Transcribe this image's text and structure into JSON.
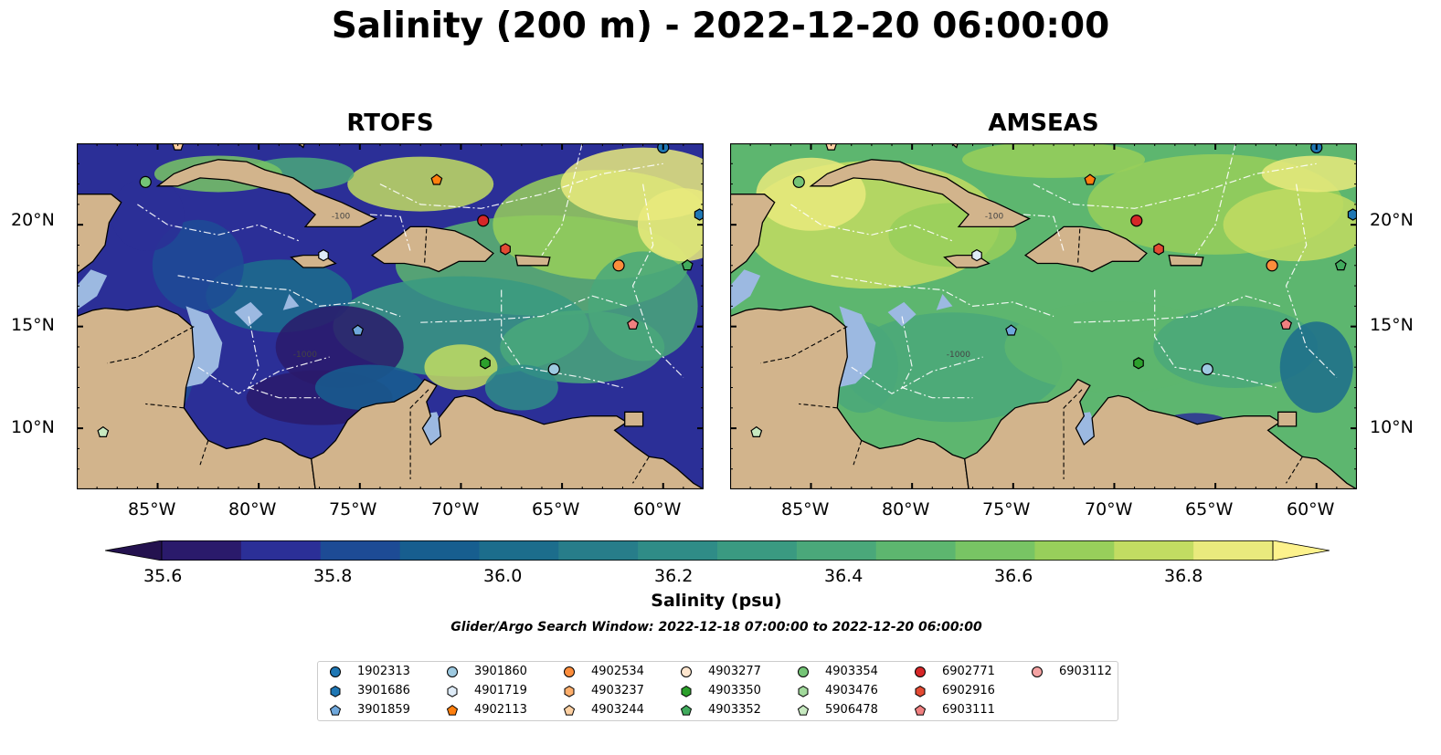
{
  "title": "Salinity (200 m) - 2022-12-20 06:00:00",
  "panels": [
    {
      "title": "RTOFS"
    },
    {
      "title": "AMSEAS"
    }
  ],
  "axes": {
    "lon_ticks": [
      "85°W",
      "80°W",
      "75°W",
      "70°W",
      "65°W",
      "60°W"
    ],
    "lat_ticks": [
      "20°N",
      "15°N",
      "10°N"
    ],
    "lon_range": [
      -89,
      -58
    ],
    "lat_range": [
      7,
      24
    ]
  },
  "colorbar": {
    "label": "Salinity (psu)",
    "ticks": [
      "35.6",
      "35.8",
      "36.0",
      "36.2",
      "36.4",
      "36.6",
      "36.8"
    ],
    "range": [
      35.5,
      37.0
    ],
    "colors": [
      "#2a1a6b",
      "#2b2f97",
      "#1d4b95",
      "#175e8f",
      "#1c6d8c",
      "#277d8a",
      "#2f8c87",
      "#3a9a81",
      "#4aa87a",
      "#5db66f",
      "#78c464",
      "#98cf5b",
      "#c2dc62",
      "#e9ea7d"
    ]
  },
  "contour_labels": [
    "-100",
    "-1000"
  ],
  "search_window": "Glider/Argo Search Window: 2022-12-18 07:00:00 to 2022-12-20 06:00:00",
  "floats": [
    {
      "id": "1902313",
      "marker": "circle",
      "color": "#1f77b4"
    },
    {
      "id": "3901686",
      "marker": "hexagon",
      "color": "#1f77b4"
    },
    {
      "id": "3901859",
      "marker": "pentagon",
      "color": "#6fa8dc"
    },
    {
      "id": "3901860",
      "marker": "circle",
      "color": "#9ecae1"
    },
    {
      "id": "4901719",
      "marker": "hexagon",
      "color": "#deebf7"
    },
    {
      "id": "4902113",
      "marker": "pentagon",
      "color": "#ff7f0e"
    },
    {
      "id": "4902534",
      "marker": "circle",
      "color": "#fd8d3c"
    },
    {
      "id": "4903237",
      "marker": "hexagon",
      "color": "#fdae6b"
    },
    {
      "id": "4903244",
      "marker": "pentagon",
      "color": "#fdd0a2"
    },
    {
      "id": "4903277",
      "marker": "circle",
      "color": "#fee6ce"
    },
    {
      "id": "4903350",
      "marker": "hexagon",
      "color": "#2ca02c"
    },
    {
      "id": "4903352",
      "marker": "pentagon",
      "color": "#41ab5d"
    },
    {
      "id": "4903354",
      "marker": "circle",
      "color": "#74c476"
    },
    {
      "id": "4903476",
      "marker": "hexagon",
      "color": "#a1d99b"
    },
    {
      "id": "5906478",
      "marker": "pentagon",
      "color": "#c7e9c0"
    },
    {
      "id": "6902771",
      "marker": "circle",
      "color": "#d62728"
    },
    {
      "id": "6902916",
      "marker": "hexagon",
      "color": "#e34a33"
    },
    {
      "id": "6903111",
      "marker": "pentagon",
      "color": "#f08080"
    },
    {
      "id": "6903112",
      "marker": "circle",
      "color": "#f4a3a3"
    }
  ],
  "float_positions": [
    {
      "id": "1902313",
      "lon": -60.0,
      "lat": 23.8
    },
    {
      "id": "3901686",
      "lon": -58.2,
      "lat": 20.5
    },
    {
      "id": "3901859",
      "lon": -75.1,
      "lat": 14.8
    },
    {
      "id": "3901860",
      "lon": -65.4,
      "lat": 12.9
    },
    {
      "id": "4901719",
      "lon": -76.8,
      "lat": 18.5
    },
    {
      "id": "4902113",
      "lon": -71.2,
      "lat": 22.2
    },
    {
      "id": "4902534",
      "lon": -62.2,
      "lat": 18.0
    },
    {
      "id": "4903244",
      "lon": -84.0,
      "lat": 23.9
    },
    {
      "id": "4903352",
      "lon": -58.8,
      "lat": 18.0
    },
    {
      "id": "4903350",
      "lon": -68.8,
      "lat": 13.2
    },
    {
      "id": "4903354",
      "lon": -85.6,
      "lat": 22.1
    },
    {
      "id": "5906478",
      "lon": -87.7,
      "lat": 9.8
    },
    {
      "id": "6902771",
      "lon": -68.9,
      "lat": 20.2
    },
    {
      "id": "6902916",
      "lon": -67.8,
      "lat": 18.8
    },
    {
      "id": "6903111",
      "lon": -61.5,
      "lat": 15.1
    }
  ]
}
